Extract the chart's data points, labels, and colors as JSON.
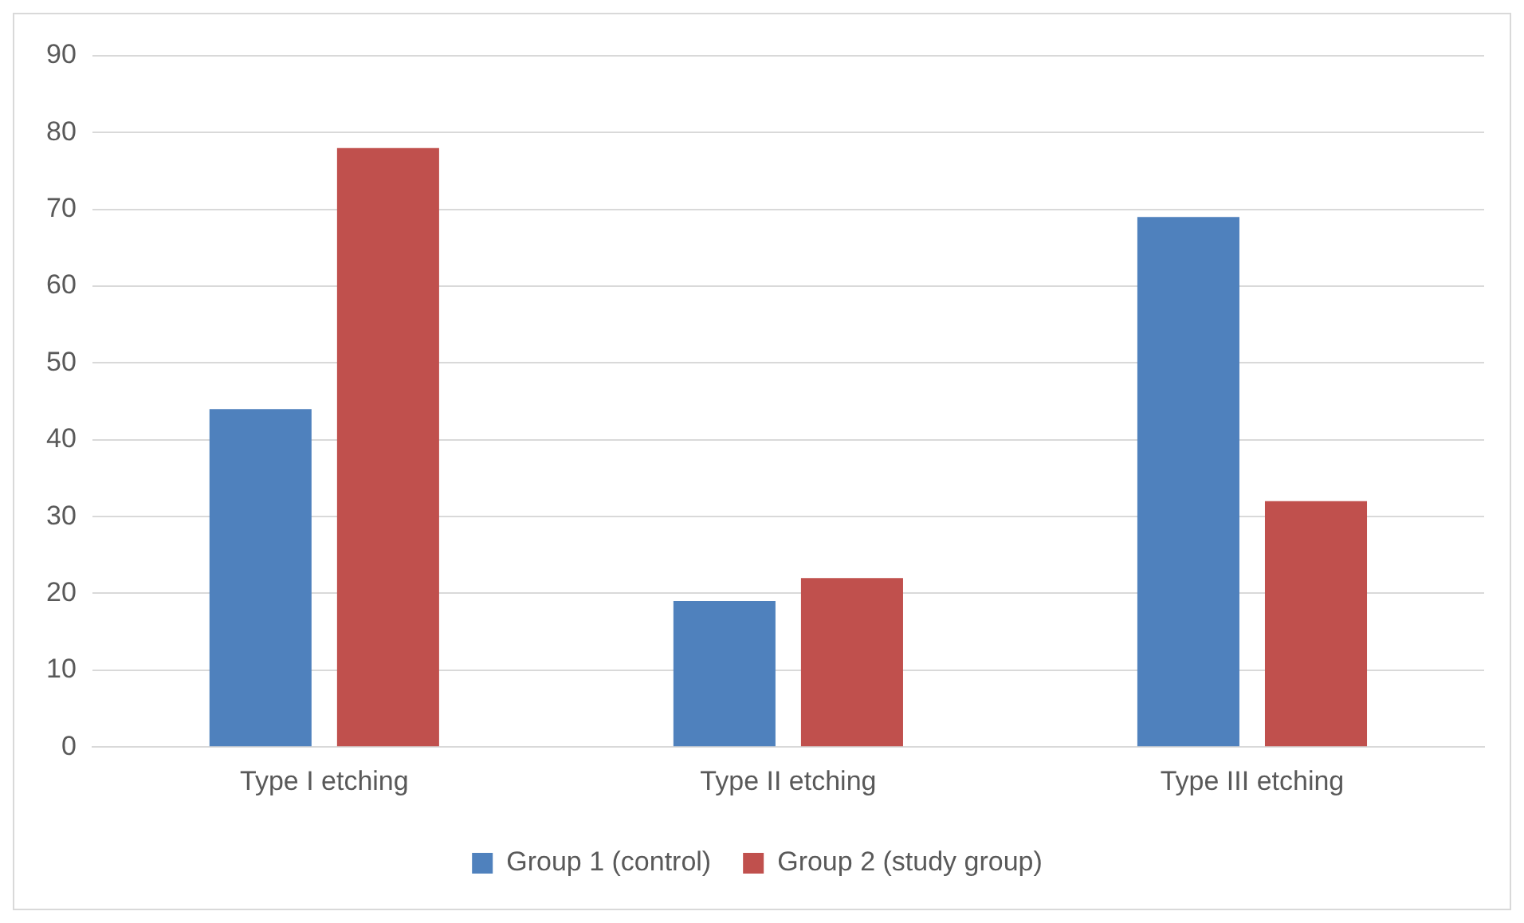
{
  "chart_data": {
    "type": "bar",
    "categories": [
      "Type I etching",
      "Type II etching",
      "Type III etching"
    ],
    "series": [
      {
        "name": "Group 1 (control)",
        "color": "#4f81bd",
        "values": [
          44,
          19,
          69
        ]
      },
      {
        "name": "Group 2 (study group)",
        "color": "#c0504d",
        "values": [
          78,
          22,
          32
        ]
      }
    ],
    "ylim": [
      0,
      90
    ],
    "yticks": [
      0,
      10,
      20,
      30,
      40,
      50,
      60,
      70,
      80,
      90
    ],
    "grid": "y",
    "legend": "bottom"
  }
}
